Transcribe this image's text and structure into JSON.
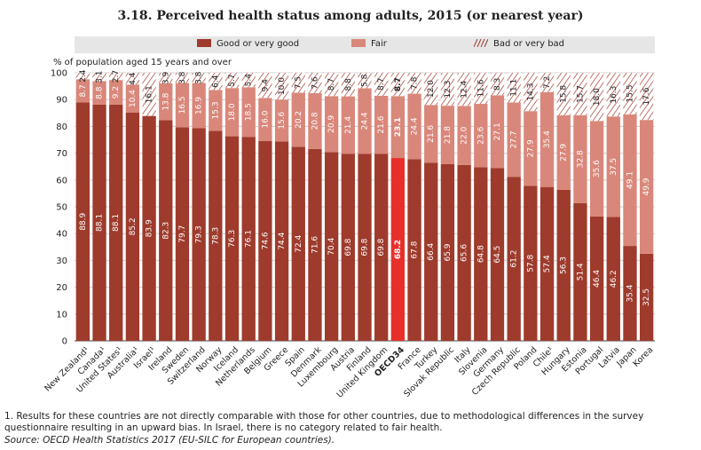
{
  "chart_data": {
    "type": "bar",
    "stacked": true,
    "title": "3.18. Perceived health status among adults, 2015 (or nearest year)",
    "ylabel": "% of population aged 15 years and over",
    "ylim": [
      0,
      100
    ],
    "yticks": [
      0,
      10,
      20,
      30,
      40,
      50,
      60,
      70,
      80,
      90,
      100
    ],
    "categories": [
      "New Zealand¹",
      "Canada¹",
      "United States¹",
      "Australia¹",
      "Israel¹",
      "Ireland",
      "Sweden",
      "Switzerland",
      "Norway",
      "Iceland",
      "Netherlands",
      "Belgium",
      "Greece",
      "Spain",
      "Denmark",
      "Luxembourg",
      "Austria",
      "Finland",
      "United Kingdom",
      "OECD34",
      "France",
      "Turkey",
      "Slovak Republic",
      "Italy",
      "Slovenia",
      "Germany",
      "Czech Republic",
      "Poland",
      "Chile¹",
      "Hungary",
      "Estonia",
      "Portugal",
      "Latvia",
      "Japan",
      "Korea"
    ],
    "highlight": "OECD34",
    "series": [
      {
        "name": "Good or very good",
        "color": "#9e3b2c",
        "highlight_color": "#e8302b",
        "values": [
          88.9,
          88.1,
          88.1,
          85.2,
          83.9,
          82.3,
          79.7,
          79.3,
          78.3,
          76.3,
          76.1,
          74.6,
          74.4,
          72.4,
          71.6,
          70.4,
          69.8,
          69.8,
          69.8,
          68.2,
          67.8,
          66.4,
          65.9,
          65.6,
          64.8,
          64.5,
          61.2,
          57.8,
          57.4,
          56.3,
          51.4,
          46.4,
          46.2,
          35.4,
          32.5
        ]
      },
      {
        "name": "Fair",
        "color": "#d9877a",
        "values": [
          8.7,
          8.8,
          9.2,
          10.4,
          null,
          13.8,
          16.5,
          16.9,
          15.3,
          18.0,
          18.5,
          16.0,
          15.6,
          20.2,
          20.8,
          20.9,
          21.4,
          24.4,
          21.6,
          23.1,
          24.4,
          21.6,
          21.8,
          22.0,
          23.6,
          27.1,
          27.7,
          27.9,
          35.4,
          27.9,
          32.8,
          35.6,
          37.5,
          49.1,
          49.9
        ]
      },
      {
        "name": "Bad or very bad",
        "color": "#9e3b2c",
        "values": [
          2.4,
          3.1,
          2.7,
          4.4,
          16.1,
          3.9,
          3.8,
          3.8,
          6.4,
          5.7,
          5.4,
          9.4,
          10.0,
          7.5,
          7.6,
          8.7,
          8.8,
          5.8,
          8.7,
          8.7,
          7.8,
          12.0,
          12.3,
          12.4,
          11.6,
          8.3,
          11.1,
          14.3,
          7.2,
          15.8,
          15.7,
          18.0,
          16.3,
          15.5,
          17.6
        ]
      }
    ]
  },
  "footnote": "1. Results for these countries are not directly comparable with those for other countries, due to methodological differences in the survey questionnaire resulting in an upward bias. In Israel, there is no category related to fair health.",
  "source": "Source: OECD Health Statistics 2017 (EU-SILC for European countries)."
}
